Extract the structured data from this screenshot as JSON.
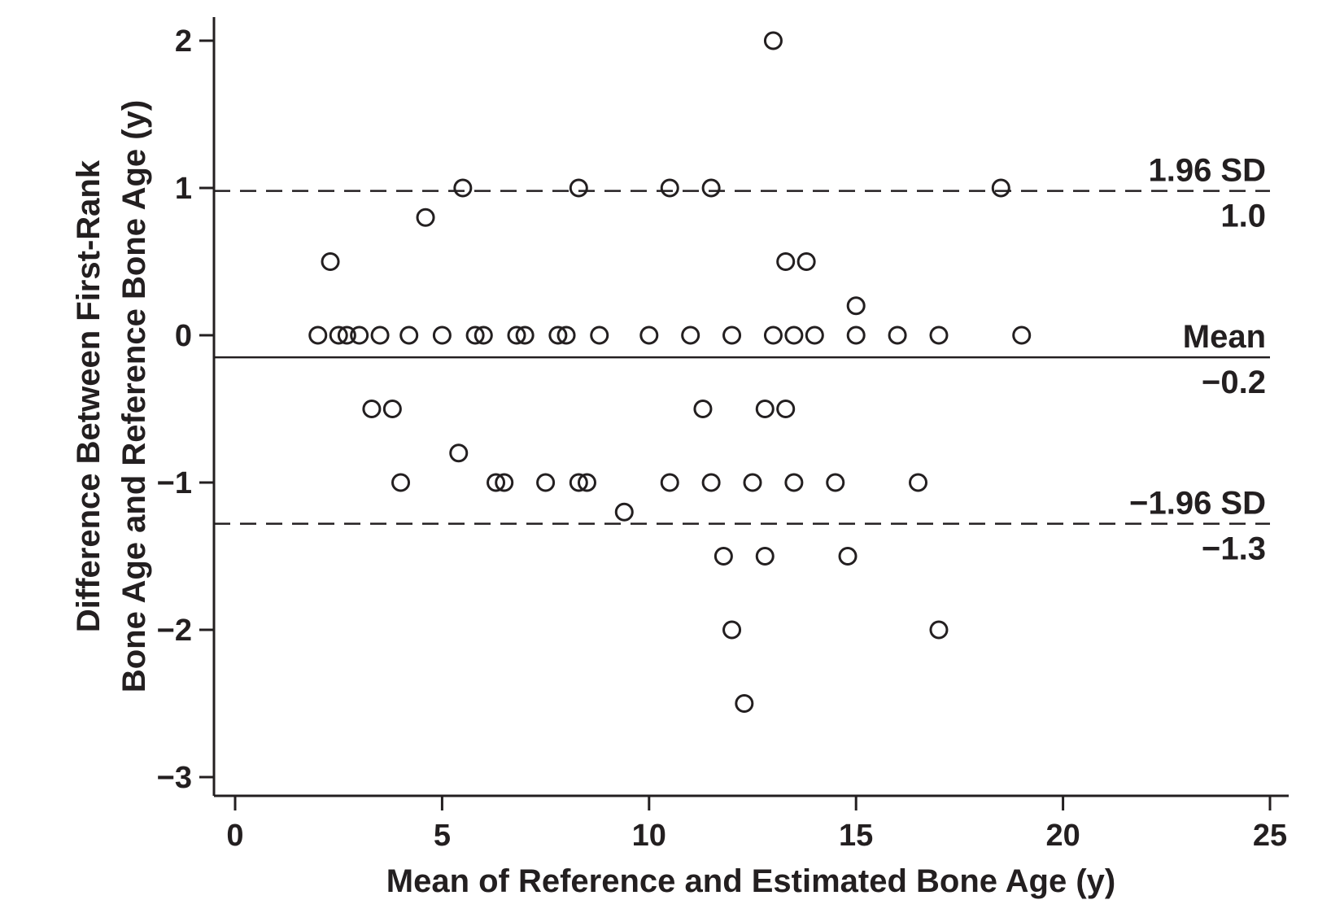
{
  "chart_data": {
    "type": "scatter",
    "title": "",
    "xlabel": "Mean of Reference and Estimated Bone Age (y)",
    "ylabel_lines": [
      "Difference Between First-Rank",
      "Bone Age and Reference Bone Age (y)"
    ],
    "xlim": [
      0,
      25
    ],
    "ylim": [
      -3,
      2
    ],
    "x_ticks": [
      0,
      5,
      10,
      15,
      20,
      25
    ],
    "x_tick_labels": [
      "0",
      "5",
      "10",
      "15",
      "20",
      "25"
    ],
    "y_ticks": [
      2,
      1,
      0,
      -1,
      -2,
      -3
    ],
    "y_tick_labels": [
      "2",
      "1",
      "0",
      "−1",
      "−2",
      "−3"
    ],
    "grid": false,
    "reference_lines": [
      {
        "kind": "upper-limit",
        "style": "dashed",
        "y": 0.98,
        "label": "1.96 SD",
        "value_label": "1.0"
      },
      {
        "kind": "mean",
        "style": "solid",
        "y": -0.15,
        "label": "Mean",
        "value_label": "−0.2"
      },
      {
        "kind": "lower-limit",
        "style": "dashed",
        "y": -1.28,
        "label": "−1.96 SD",
        "value_label": "−1.3"
      }
    ],
    "points": [
      {
        "x": 13.0,
        "y": 2.0
      },
      {
        "x": 5.5,
        "y": 1.0
      },
      {
        "x": 8.3,
        "y": 1.0
      },
      {
        "x": 10.5,
        "y": 1.0
      },
      {
        "x": 11.5,
        "y": 1.0
      },
      {
        "x": 18.5,
        "y": 1.0
      },
      {
        "x": 4.6,
        "y": 0.8
      },
      {
        "x": 2.3,
        "y": 0.5
      },
      {
        "x": 13.3,
        "y": 0.5
      },
      {
        "x": 13.8,
        "y": 0.5
      },
      {
        "x": 15.0,
        "y": 0.2
      },
      {
        "x": 2.0,
        "y": 0.0
      },
      {
        "x": 2.5,
        "y": 0.0
      },
      {
        "x": 2.7,
        "y": 0.0
      },
      {
        "x": 3.0,
        "y": 0.0
      },
      {
        "x": 3.5,
        "y": 0.0
      },
      {
        "x": 4.2,
        "y": 0.0
      },
      {
        "x": 5.0,
        "y": 0.0
      },
      {
        "x": 5.8,
        "y": 0.0
      },
      {
        "x": 6.0,
        "y": 0.0
      },
      {
        "x": 6.8,
        "y": 0.0
      },
      {
        "x": 7.0,
        "y": 0.0
      },
      {
        "x": 7.8,
        "y": 0.0
      },
      {
        "x": 8.0,
        "y": 0.0
      },
      {
        "x": 8.8,
        "y": 0.0
      },
      {
        "x": 10.0,
        "y": 0.0
      },
      {
        "x": 11.0,
        "y": 0.0
      },
      {
        "x": 12.0,
        "y": 0.0
      },
      {
        "x": 13.0,
        "y": 0.0
      },
      {
        "x": 13.5,
        "y": 0.0
      },
      {
        "x": 14.0,
        "y": 0.0
      },
      {
        "x": 15.0,
        "y": 0.0
      },
      {
        "x": 16.0,
        "y": 0.0
      },
      {
        "x": 17.0,
        "y": 0.0
      },
      {
        "x": 19.0,
        "y": 0.0
      },
      {
        "x": 3.3,
        "y": -0.5
      },
      {
        "x": 3.8,
        "y": -0.5
      },
      {
        "x": 11.3,
        "y": -0.5
      },
      {
        "x": 12.8,
        "y": -0.5
      },
      {
        "x": 13.3,
        "y": -0.5
      },
      {
        "x": 5.4,
        "y": -0.8
      },
      {
        "x": 4.0,
        "y": -1.0
      },
      {
        "x": 6.3,
        "y": -1.0
      },
      {
        "x": 6.5,
        "y": -1.0
      },
      {
        "x": 7.5,
        "y": -1.0
      },
      {
        "x": 8.3,
        "y": -1.0
      },
      {
        "x": 8.5,
        "y": -1.0
      },
      {
        "x": 10.5,
        "y": -1.0
      },
      {
        "x": 11.5,
        "y": -1.0
      },
      {
        "x": 12.5,
        "y": -1.0
      },
      {
        "x": 13.5,
        "y": -1.0
      },
      {
        "x": 14.5,
        "y": -1.0
      },
      {
        "x": 16.5,
        "y": -1.0
      },
      {
        "x": 9.4,
        "y": -1.2
      },
      {
        "x": 11.8,
        "y": -1.5
      },
      {
        "x": 12.8,
        "y": -1.5
      },
      {
        "x": 14.8,
        "y": -1.5
      },
      {
        "x": 12.0,
        "y": -2.0
      },
      {
        "x": 17.0,
        "y": -2.0
      },
      {
        "x": 12.3,
        "y": -2.5
      }
    ],
    "colors": {
      "ink": "#231f20",
      "background": "#ffffff"
    }
  }
}
